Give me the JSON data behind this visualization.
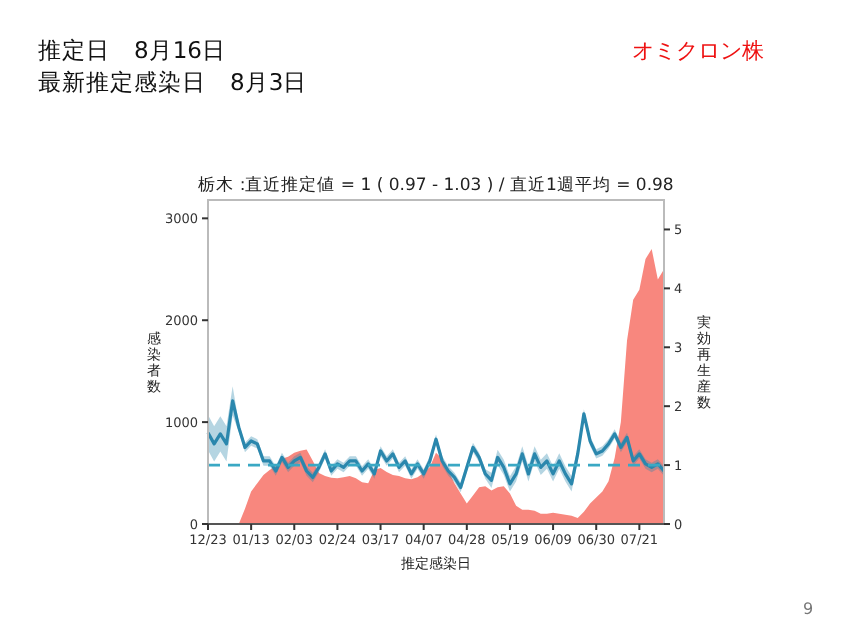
{
  "chart_data": {
    "type": "area",
    "title": "栃木 :直近推定値 = 1 ( 0.97 - 1.03 ) / 直近1週平均 = 0.98",
    "xlabel": "推定感染日",
    "ylabel": "感染者数",
    "y2label": "実効再生産数",
    "annotations": [
      "推定日　8月16日",
      "最新推定感染日　8月3日",
      "オミクロン株",
      "9"
    ],
    "categories": [
      "12/23",
      null,
      null,
      null,
      null,
      null,
      null,
      "01/13",
      null,
      null,
      null,
      null,
      null,
      null,
      "02/03",
      null,
      null,
      null,
      null,
      null,
      null,
      "02/24",
      null,
      null,
      null,
      null,
      null,
      null,
      "03/17",
      null,
      null,
      null,
      null,
      null,
      null,
      "04/07",
      null,
      null,
      null,
      null,
      null,
      null,
      "04/28",
      null,
      null,
      null,
      null,
      null,
      null,
      "05/19",
      null,
      null,
      null,
      null,
      null,
      null,
      "06/09",
      null,
      null,
      null,
      null,
      null,
      null,
      "06/30",
      null,
      null,
      null,
      null,
      null,
      null,
      "07/21",
      null,
      null,
      null,
      null
    ],
    "series": [
      {
        "color": "#f8877e",
        "values": [
          0,
          0,
          0,
          0,
          0,
          0,
          150,
          320,
          400,
          480,
          530,
          570,
          640,
          660,
          700,
          720,
          730,
          620,
          500,
          470,
          455,
          450,
          460,
          470,
          450,
          410,
          400,
          530,
          550,
          510,
          480,
          470,
          450,
          440,
          460,
          500,
          560,
          700,
          640,
          520,
          400,
          300,
          200,
          280,
          360,
          370,
          330,
          360,
          370,
          300,
          180,
          140,
          140,
          130,
          100,
          100,
          110,
          100,
          90,
          80,
          60,
          120,
          200,
          260,
          320,
          420,
          650,
          1000,
          1800,
          2200,
          2300,
          2600,
          2700,
          2400,
          2500
        ]
      },
      {
        "type": "line",
        "axis": "y2",
        "color": "#2a87ad",
        "values": [
          1.55,
          1.36,
          1.53,
          1.36,
          2.09,
          1.64,
          1.3,
          1.41,
          1.36,
          1.07,
          1.07,
          0.9,
          1.13,
          0.96,
          1.07,
          1.13,
          0.9,
          0.79,
          0.96,
          1.19,
          0.9,
          1.02,
          0.96,
          1.07,
          1.07,
          0.9,
          1.02,
          0.85,
          1.24,
          1.07,
          1.19,
          0.96,
          1.07,
          0.85,
          1.02,
          0.85,
          1.07,
          1.44,
          1.07,
          0.9,
          0.79,
          0.62,
          0.96,
          1.3,
          1.13,
          0.85,
          0.74,
          1.13,
          0.96,
          0.68,
          0.85,
          1.19,
          0.85,
          1.19,
          0.96,
          1.07,
          0.85,
          1.07,
          0.85,
          0.68,
          1.19,
          1.87,
          1.41,
          1.19,
          1.24,
          1.36,
          1.53,
          1.3,
          1.47,
          1.07,
          1.19,
          1.02,
          0.96,
          1.02,
          0.9
        ],
        "lower": [
          1.25,
          1.06,
          1.23,
          1.06,
          1.84,
          1.56,
          1.22,
          1.33,
          1.28,
          0.99,
          0.99,
          0.82,
          1.05,
          0.88,
          0.99,
          1.05,
          0.82,
          0.71,
          0.88,
          1.11,
          0.82,
          0.94,
          0.88,
          0.99,
          0.99,
          0.82,
          0.94,
          0.77,
          1.16,
          0.99,
          1.11,
          0.88,
          0.99,
          0.77,
          0.94,
          0.77,
          0.99,
          1.36,
          0.99,
          0.82,
          0.71,
          0.54,
          0.88,
          1.22,
          1.05,
          0.77,
          0.61,
          1.0,
          0.83,
          0.55,
          0.72,
          1.06,
          0.72,
          1.06,
          0.83,
          0.94,
          0.72,
          0.94,
          0.72,
          0.55,
          1.06,
          1.79,
          1.33,
          1.11,
          1.16,
          1.28,
          1.45,
          1.22,
          1.39,
          0.99,
          1.11,
          0.94,
          0.88,
          0.94,
          0.82
        ],
        "upper": [
          1.85,
          1.66,
          1.83,
          1.66,
          2.34,
          1.72,
          1.38,
          1.49,
          1.44,
          1.15,
          1.15,
          0.98,
          1.21,
          1.04,
          1.15,
          1.21,
          0.98,
          0.87,
          1.04,
          1.27,
          0.98,
          1.1,
          1.04,
          1.15,
          1.15,
          0.98,
          1.1,
          0.93,
          1.32,
          1.15,
          1.27,
          1.04,
          1.15,
          0.93,
          1.1,
          0.93,
          1.15,
          1.52,
          1.15,
          0.98,
          0.87,
          0.7,
          1.04,
          1.38,
          1.21,
          0.93,
          0.87,
          1.26,
          1.09,
          0.81,
          0.98,
          1.32,
          0.98,
          1.32,
          1.09,
          1.2,
          0.98,
          1.2,
          0.98,
          0.81,
          1.32,
          1.95,
          1.49,
          1.27,
          1.32,
          1.44,
          1.61,
          1.38,
          1.55,
          1.15,
          1.27,
          1.1,
          1.04,
          1.1,
          0.98
        ]
      }
    ],
    "ylim": [
      0,
      3180
    ],
    "yticks": [
      0,
      1000,
      2000,
      3000
    ],
    "y2lim": [
      0,
      5.5
    ],
    "y2ticks": [
      0,
      1,
      2,
      3,
      4,
      5
    ],
    "ref_lines": [
      {
        "axis": "y2",
        "value": 1,
        "color": "#3aa8c4",
        "line_style": "dashed"
      }
    ]
  }
}
